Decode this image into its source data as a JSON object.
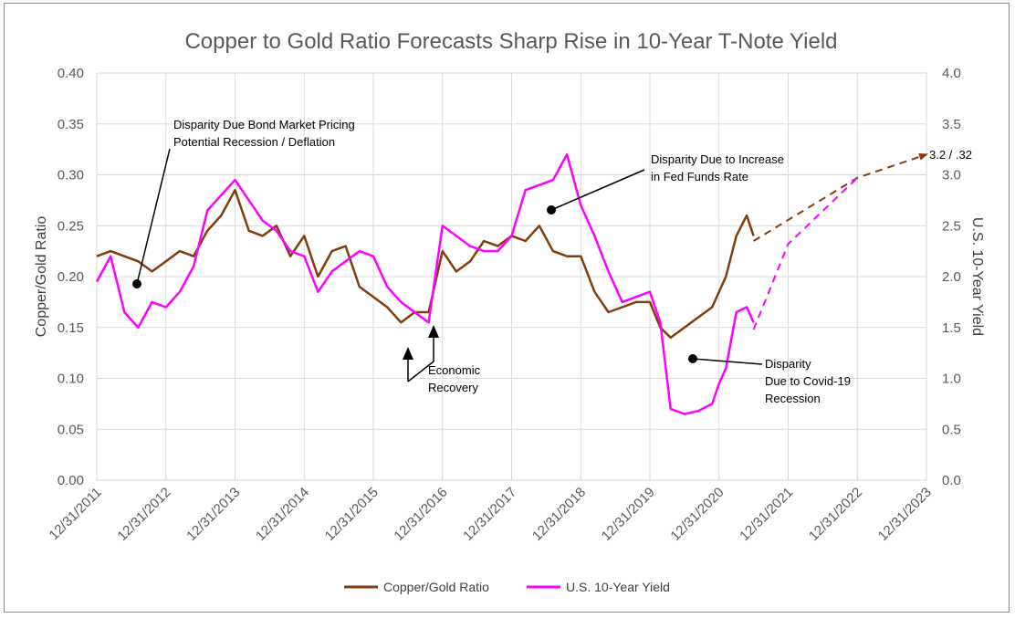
{
  "chart_data": {
    "type": "line",
    "title": "Copper to Gold Ratio Forecasts Sharp Rise in 10-Year T-Note Yield",
    "ylabel": "Copper/Gold Ratio",
    "y2label": "U.S. 10-Year Yield",
    "ylim": [
      0,
      0.4
    ],
    "y2lim": [
      0,
      4.0
    ],
    "y_ticks": [
      "0.00",
      "0.05",
      "0.10",
      "0.15",
      "0.20",
      "0.25",
      "0.30",
      "0.35",
      "0.40"
    ],
    "y2_ticks": [
      "0.0",
      "0.5",
      "1.0",
      "1.5",
      "2.0",
      "2.5",
      "3.0",
      "3.5",
      "4.0"
    ],
    "x_ticks": [
      "12/31/2011",
      "12/31/2012",
      "12/31/2013",
      "12/31/2014",
      "12/31/2015",
      "12/31/2016",
      "12/31/2017",
      "12/31/2018",
      "12/31/2019",
      "12/31/2020",
      "12/31/2021",
      "12/31/2022",
      "12/31/2023"
    ],
    "grid": true,
    "legend_position": "bottom",
    "series": [
      {
        "name": "Copper/Gold Ratio",
        "axis": "left",
        "color": "#843C0C",
        "x": [
          2012.0,
          2012.2,
          2012.4,
          2012.6,
          2012.8,
          2013.0,
          2013.2,
          2013.4,
          2013.6,
          2013.8,
          2014.0,
          2014.2,
          2014.4,
          2014.6,
          2014.8,
          2015.0,
          2015.2,
          2015.4,
          2015.6,
          2015.8,
          2016.0,
          2016.2,
          2016.4,
          2016.6,
          2016.8,
          2017.0,
          2017.2,
          2017.4,
          2017.6,
          2017.8,
          2018.0,
          2018.2,
          2018.4,
          2018.6,
          2018.8,
          2019.0,
          2019.2,
          2019.4,
          2019.6,
          2019.8,
          2020.0,
          2020.15,
          2020.3,
          2020.5,
          2020.7,
          2020.9,
          2021.0,
          2021.1,
          2021.25,
          2021.4,
          2021.5
        ],
        "values": [
          0.22,
          0.225,
          0.22,
          0.215,
          0.205,
          0.215,
          0.225,
          0.22,
          0.245,
          0.26,
          0.285,
          0.245,
          0.24,
          0.25,
          0.22,
          0.24,
          0.2,
          0.225,
          0.23,
          0.19,
          0.18,
          0.17,
          0.155,
          0.165,
          0.165,
          0.225,
          0.205,
          0.215,
          0.235,
          0.23,
          0.24,
          0.235,
          0.25,
          0.225,
          0.22,
          0.22,
          0.185,
          0.165,
          0.17,
          0.175,
          0.175,
          0.15,
          0.14,
          0.15,
          0.16,
          0.17,
          0.185,
          0.2,
          0.24,
          0.26,
          0.24
        ]
      },
      {
        "name": "U.S. 10-Year Yield",
        "axis": "right",
        "color": "#FF00FF",
        "x": [
          2012.0,
          2012.2,
          2012.4,
          2012.6,
          2012.8,
          2013.0,
          2013.2,
          2013.4,
          2013.6,
          2013.8,
          2014.0,
          2014.2,
          2014.4,
          2014.6,
          2014.8,
          2015.0,
          2015.2,
          2015.4,
          2015.6,
          2015.8,
          2016.0,
          2016.2,
          2016.4,
          2016.6,
          2016.8,
          2017.0,
          2017.2,
          2017.4,
          2017.6,
          2017.8,
          2018.0,
          2018.2,
          2018.4,
          2018.6,
          2018.8,
          2019.0,
          2019.2,
          2019.4,
          2019.6,
          2019.8,
          2020.0,
          2020.15,
          2020.3,
          2020.5,
          2020.7,
          2020.9,
          2021.0,
          2021.1,
          2021.25,
          2021.4,
          2021.5
        ],
        "values": [
          1.95,
          2.2,
          1.65,
          1.5,
          1.75,
          1.7,
          1.85,
          2.1,
          2.65,
          2.8,
          2.95,
          2.75,
          2.55,
          2.45,
          2.25,
          2.2,
          1.85,
          2.05,
          2.15,
          2.25,
          2.2,
          1.9,
          1.75,
          1.65,
          1.55,
          2.5,
          2.4,
          2.3,
          2.25,
          2.25,
          2.4,
          2.85,
          2.9,
          2.95,
          3.2,
          2.7,
          2.4,
          2.05,
          1.75,
          1.8,
          1.85,
          1.55,
          0.7,
          0.65,
          0.68,
          0.75,
          0.95,
          1.1,
          1.65,
          1.7,
          1.55
        ]
      }
    ],
    "forecasts": [
      {
        "series": "Copper/Gold Ratio",
        "x": [
          2021.5,
          2023.0,
          2024.0
        ],
        "values": [
          0.235,
          0.297,
          0.32
        ]
      },
      {
        "series": "U.S. 10-Year Yield",
        "x": [
          2021.5,
          2022.0,
          2023.0
        ],
        "values": [
          1.48,
          2.32,
          2.97
        ]
      }
    ],
    "annotations": [
      {
        "lines": [
          "Disparity Due Bond Market Pricing",
          "Potential Recession / Deflation"
        ]
      },
      {
        "lines": [
          "Disparity Due to Increase",
          "in Fed Funds Rate"
        ]
      },
      {
        "lines": [
          "Economic",
          "Recovery"
        ]
      },
      {
        "lines": [
          "Disparity",
          "Due to Covid-19",
          "Recession"
        ]
      },
      {
        "lines": [
          "3.2 / .32"
        ]
      }
    ]
  }
}
